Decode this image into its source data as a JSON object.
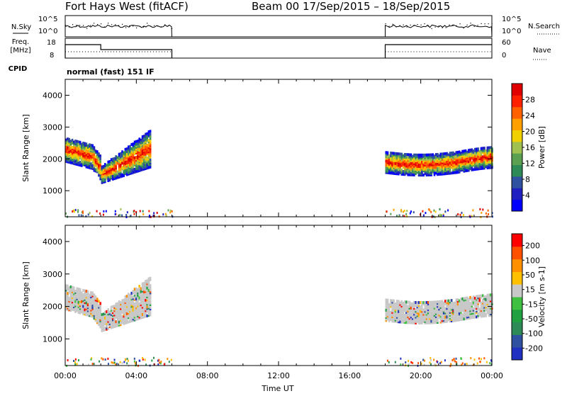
{
  "header": {
    "station": "Fort Hays West (fitACF)",
    "beam_date": "Beam 00  17/Sep/2015 – 18/Sep/2015"
  },
  "strip_labels": {
    "nsky": "N.Sky",
    "freq_line1": "Freq.",
    "freq_line2": "[MHz]",
    "cpid": "CPID",
    "nsearch": "N.Search",
    "nave": "Nave",
    "cpid_name": "normal (fast) 151 IF"
  },
  "strip_ticks": {
    "noise_left": [
      "10^5",
      "10^0"
    ],
    "noise_right": [
      "10^5",
      "10^0"
    ],
    "freq_left": [
      "18",
      "8"
    ],
    "freq_right": [
      "60",
      "0"
    ]
  },
  "colors": {
    "power_scale": [
      "#0000ff",
      "#2020c0",
      "#3050a0",
      "#2e8b57",
      "#5aa050",
      "#a0c050",
      "#f0d000",
      "#ffa000",
      "#ff6000",
      "#ff2000",
      "#e00000"
    ],
    "velocity_scale": [
      "#ff0000",
      "#ff5000",
      "#ff9000",
      "#ffc000",
      "#c8c8c8",
      "#40c040",
      "#20a040",
      "#2e8b57",
      "#3050a0",
      "#2030c0"
    ],
    "ground_scatter": "#c8c8c8"
  },
  "chart_data": [
    {
      "type": "heatmap",
      "name": "power",
      "ylabel": "Slant Range [km]",
      "xlabel": "Time UT",
      "colorbar_label": "Power [dB]",
      "colorbar_ticks": [
        "4",
        "8",
        "12",
        "16",
        "20",
        "24",
        "28"
      ],
      "x_ticks": [
        "00:00",
        "04:00",
        "08:00",
        "12:00",
        "16:00",
        "20:00",
        "00:00"
      ],
      "y_ticks": [
        "1000",
        "2000",
        "3000",
        "4000"
      ],
      "x_range_hours": [
        0,
        24
      ],
      "y_range_km": [
        180,
        4500
      ],
      "data_windows_hours": [
        [
          0,
          6
        ],
        [
          18,
          24
        ]
      ]
    },
    {
      "type": "heatmap",
      "name": "velocity",
      "ylabel": "Slant Range [km]",
      "xlabel": "Time UT",
      "colorbar_label": "Velocity [m s-1]",
      "colorbar_ticks": [
        "200",
        "100",
        "50",
        "15",
        "-15",
        "-50",
        "-100",
        "-200"
      ],
      "x_ticks": [
        "00:00",
        "04:00",
        "08:00",
        "12:00",
        "16:00",
        "20:00",
        "00:00"
      ],
      "y_ticks": [
        "1000",
        "2000",
        "3000",
        "4000"
      ],
      "x_range_hours": [
        0,
        24
      ],
      "y_range_km": [
        180,
        4500
      ],
      "data_windows_hours": [
        [
          0,
          6
        ],
        [
          18,
          24
        ]
      ]
    }
  ],
  "x_axis_title": "Time UT"
}
